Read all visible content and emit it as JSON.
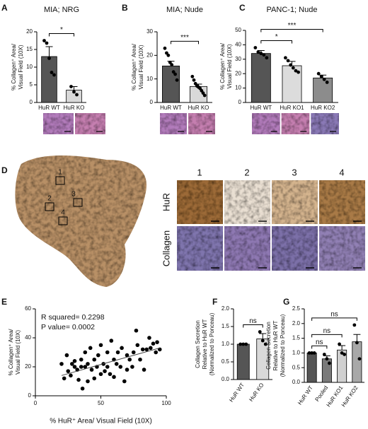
{
  "chart_data": [
    {
      "type": "bar",
      "panel": "A",
      "title": "MIA; NRG",
      "ylabel": [
        "% Collagen⁺ Area/",
        "Visual Field (10X)"
      ],
      "categories": [
        "HuR WT",
        "HuR KO"
      ],
      "values": [
        13,
        3.5
      ],
      "errors": [
        2.8,
        1
      ],
      "colors": [
        "#555555",
        "#d9d9d9"
      ],
      "points": [
        [
          17.5,
          16.8,
          12.5,
          8.5,
          7.8
        ],
        [
          4.5,
          3,
          2.2
        ]
      ],
      "ylim": [
        0,
        20
      ],
      "yticks": [
        0,
        5,
        10,
        15,
        20
      ],
      "comparisons": [
        {
          "pair": [
            "HuR WT",
            "HuR KO"
          ],
          "label": "*"
        }
      ]
    },
    {
      "type": "bar",
      "panel": "B",
      "title": "MIA; Nude",
      "ylabel": [
        "% Collagen⁺ Area/",
        "Visual Field (10X)"
      ],
      "categories": [
        "HuR WT",
        "HuR KO"
      ],
      "values": [
        15.5,
        6.8
      ],
      "errors": [
        2,
        1
      ],
      "colors": [
        "#555555",
        "#d9d9d9"
      ],
      "points": [
        [
          23,
          21,
          20,
          17,
          16,
          13,
          12,
          9.5
        ],
        [
          11,
          9.5,
          8,
          7,
          6.5,
          6,
          5,
          4,
          3
        ]
      ],
      "ylim": [
        0,
        30
      ],
      "yticks": [
        0,
        10,
        20,
        30
      ],
      "comparisons": [
        {
          "pair": [
            "HuR WT",
            "HuR KO"
          ],
          "label": "***"
        }
      ]
    },
    {
      "type": "bar",
      "panel": "C",
      "title": "PANC-1; Nude",
      "ylabel": [
        "% Collagen⁺ Area/",
        "Visual Field (10X)"
      ],
      "categories": [
        "HuR WT",
        "HuR KO1",
        "HuR KO2"
      ],
      "values": [
        34,
        25.5,
        17
      ],
      "errors": [
        2,
        3,
        2
      ],
      "colors": [
        "#555555",
        "#dcdcdc",
        "#8c8c8c"
      ],
      "points": [
        [
          38,
          35,
          34,
          33,
          31
        ],
        [
          31,
          29,
          26,
          24,
          22,
          21
        ],
        [
          20,
          18,
          16,
          14
        ]
      ],
      "ylim": [
        0,
        50
      ],
      "yticks": [
        0,
        10,
        20,
        30,
        40,
        50
      ],
      "comparisons": [
        {
          "pair": [
            "HuR WT",
            "HuR KO1"
          ],
          "label": "*"
        },
        {
          "pair": [
            "HuR WT",
            "HuR KO2"
          ],
          "label": "***"
        }
      ]
    },
    {
      "type": "image",
      "panel": "D",
      "region_labels": [
        "1",
        "2",
        "3",
        "4"
      ],
      "column_labels": [
        "1",
        "2",
        "3",
        "4"
      ],
      "row_labels": [
        "HuR",
        "Collagen"
      ]
    },
    {
      "type": "scatter",
      "panel": "E",
      "xlabel": "% HuR⁺ Area/ Visual Field (10X)",
      "ylabel": [
        "% Collagen⁺ Area/",
        "Visual Field (10X)"
      ],
      "annotations": [
        "R squared= 0.2298",
        "P value= 0.0002"
      ],
      "color": "#000000",
      "x": [
        20,
        22,
        24,
        25,
        27,
        28,
        30,
        30,
        32,
        33,
        35,
        35,
        36,
        38,
        38,
        40,
        40,
        42,
        43,
        45,
        45,
        47,
        48,
        50,
        50,
        52,
        53,
        55,
        55,
        57,
        58,
        60,
        60,
        62,
        63,
        65,
        66,
        68,
        70,
        70,
        72,
        74,
        75,
        77,
        78,
        80,
        82,
        83,
        85,
        87,
        88,
        90,
        92,
        93,
        95
      ],
      "y": [
        22,
        12,
        28,
        17,
        14,
        22,
        20,
        24,
        18,
        11,
        25,
        20,
        5,
        20,
        30,
        10,
        22,
        33,
        18,
        25,
        12,
        20,
        28,
        35,
        15,
        22,
        17,
        30,
        20,
        15,
        38,
        25,
        13,
        22,
        30,
        20,
        33,
        10,
        28,
        18,
        25,
        20,
        30,
        45,
        35,
        25,
        32,
        18,
        32,
        40,
        33,
        36,
        30,
        37,
        32
      ],
      "fit": {
        "x": [
          20,
          95
        ],
        "y": [
          14,
          33
        ]
      },
      "xlim": [
        0,
        100
      ],
      "xticks": [
        0,
        50,
        100
      ],
      "ylim": [
        0,
        60
      ],
      "yticks": [
        0,
        20,
        40,
        60
      ]
    },
    {
      "type": "bar",
      "panel": "F",
      "ylabel": [
        "Collagen Secretion",
        "Relative to HuR WT",
        "(Normalized to Ponceau)"
      ],
      "categories": [
        "HuR WT",
        "HuR KO"
      ],
      "values": [
        1.0,
        1.15
      ],
      "errors": [
        0,
        0.15
      ],
      "colors": [
        "#555555",
        "#d9d9d9"
      ],
      "points": [
        [
          1,
          1,
          1
        ],
        [
          1.35,
          1.1,
          1.0
        ]
      ],
      "ylim": [
        0,
        2
      ],
      "yticks": [
        {
          "value": 0,
          "label": "0.0"
        },
        0.5,
        {
          "value": 1,
          "label": "1.0"
        },
        1.5,
        {
          "value": 2,
          "label": "2.0"
        }
      ],
      "comparisons": [
        {
          "pair": [
            "HuR WT",
            "HuR KO"
          ],
          "label": "ns"
        }
      ]
    },
    {
      "type": "bar",
      "panel": "G",
      "ylabel": [
        "Collagen Secretion",
        "Relative to HuR WT",
        "(Normalized to Ponceau)"
      ],
      "categories": [
        "HuR WT",
        "Pooled",
        "HuR KO1",
        "HuR KO2"
      ],
      "values": [
        1.0,
        0.8,
        1.1,
        1.38
      ],
      "errors": [
        0,
        0.1,
        0.15,
        0.25
      ],
      "colors": [
        "#555555",
        "#7a7a7a",
        "#d0d0d0",
        "#a8a8a8"
      ],
      "points": [
        [
          1,
          1,
          1
        ],
        [
          0.95,
          0.8,
          0.65
        ],
        [
          1.3,
          1.0,
          0.95
        ],
        [
          1.95,
          1.35,
          0.8
        ]
      ],
      "ylim": [
        0,
        2.5
      ],
      "yticks": [
        {
          "value": 0,
          "label": "0.0"
        },
        0.5,
        {
          "value": 1,
          "label": "1.0"
        },
        1.5,
        {
          "value": 2,
          "label": "2.0"
        },
        2.5
      ],
      "comparisons": [
        {
          "pair": [
            "HuR WT",
            "Pooled"
          ],
          "label": "ns"
        },
        {
          "pair": [
            "HuR WT",
            "HuR KO1"
          ],
          "label": "ns"
        },
        {
          "pair": [
            "HuR WT",
            "HuR KO2"
          ],
          "label": "ns"
        }
      ]
    }
  ]
}
